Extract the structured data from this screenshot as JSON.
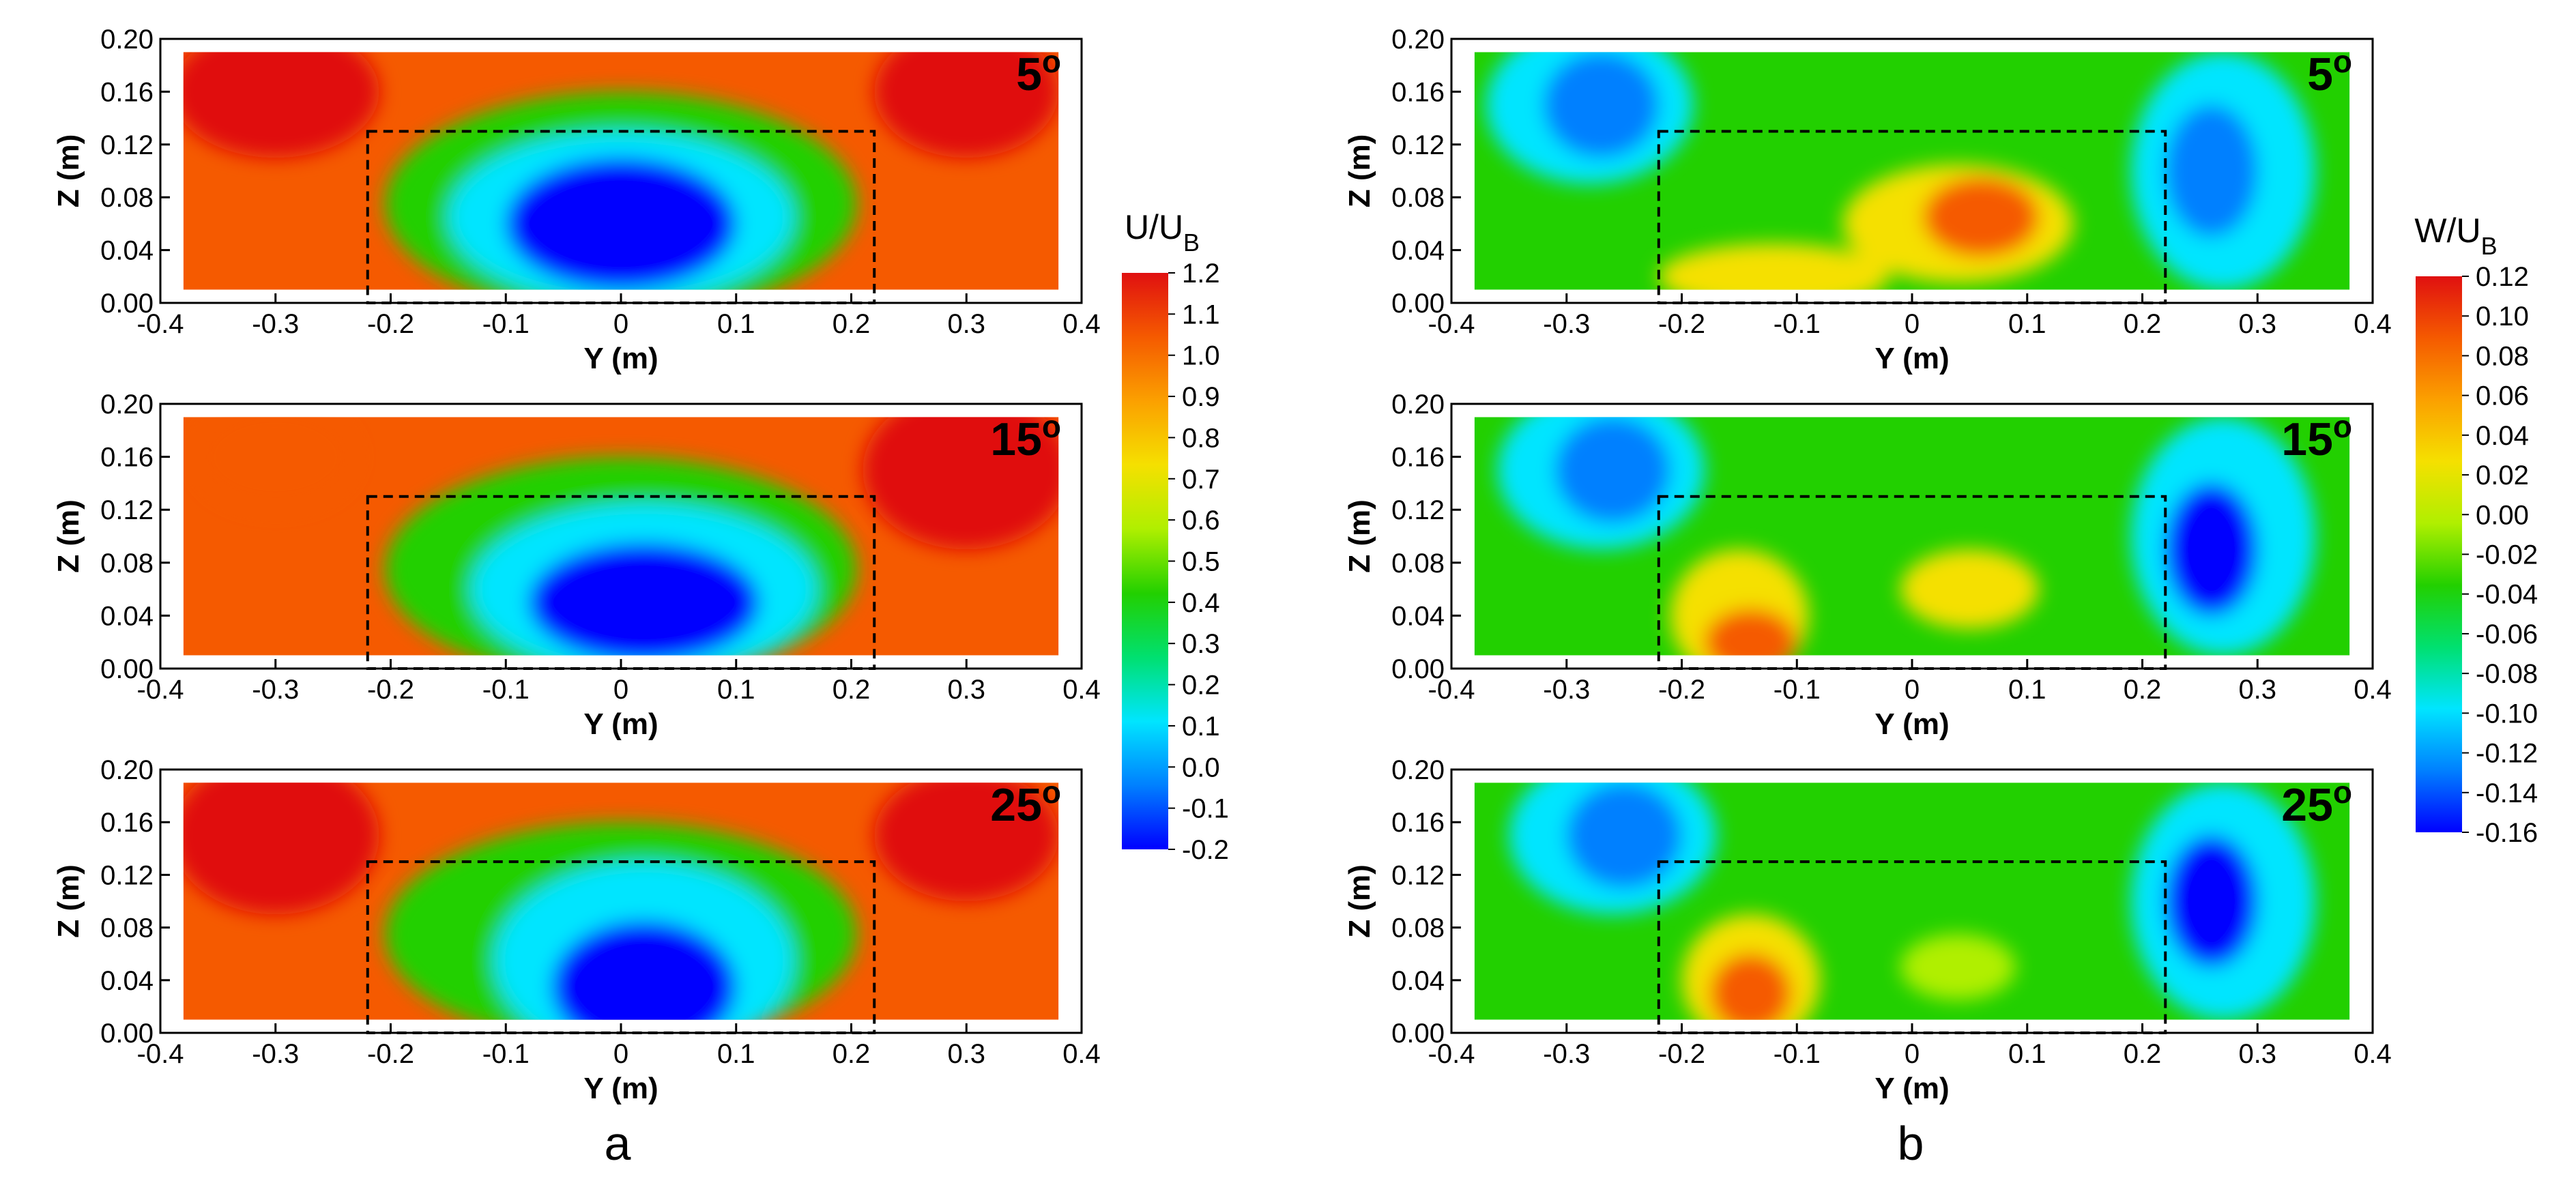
{
  "panel_letters": [
    "a",
    "b"
  ],
  "colorbars": [
    {
      "title_main": "U/U",
      "title_sub": "B",
      "ticks": [
        "1.2",
        "1.1",
        "1.0",
        "0.9",
        "0.8",
        "0.7",
        "0.6",
        "0.5",
        "0.4",
        "0.3",
        "0.2",
        "0.1",
        "0.0",
        "-0.1",
        "-0.2"
      ],
      "range": [
        -0.2,
        1.2
      ]
    },
    {
      "title_main": "W/U",
      "title_sub": "B",
      "ticks": [
        "0.12",
        "0.10",
        "0.08",
        "0.06",
        "0.04",
        "0.02",
        "0.00",
        "-0.02",
        "-0.04",
        "-0.06",
        "-0.08",
        "-0.10",
        "-0.12",
        "-0.14",
        "-0.16"
      ],
      "range": [
        -0.16,
        0.12
      ]
    }
  ],
  "colors": {
    "scale": [
      "#0000ff",
      "#0080ff",
      "#00e5ff",
      "#00e070",
      "#22d000",
      "#b0ef00",
      "#f5e000",
      "#fba000",
      "#f55a00",
      "#e01010"
    ],
    "frame": "#000000",
    "box": "#000000"
  },
  "chart_data": [
    {
      "type": "heatmap",
      "panel": "a",
      "field": "U/UB",
      "angle": "5°",
      "angle_main": "5",
      "angle_sup": "o",
      "xlabel": "Y (m)",
      "ylabel": "Z (m)",
      "xlim": [
        -0.4,
        0.4
      ],
      "ylim": [
        0.0,
        0.2
      ],
      "xticks": [
        "-0.4",
        "-0.3",
        "-0.2",
        "-0.1",
        "0",
        "0.1",
        "0.2",
        "0.3",
        "0.4"
      ],
      "yticks": [
        "0.00",
        "0.04",
        "0.08",
        "0.12",
        "0.16",
        "0.20"
      ],
      "measured_region": {
        "y": [
          -0.38,
          0.38
        ],
        "z": [
          0.01,
          0.19
        ]
      },
      "body_outline": {
        "y": [
          -0.22,
          0.22
        ],
        "z": [
          0.0,
          0.13
        ]
      },
      "features": [
        {
          "label": "wake core",
          "y": 0.0,
          "z": 0.06,
          "value": -0.1
        },
        {
          "label": "freestream",
          "value": 1.05
        }
      ]
    },
    {
      "type": "heatmap",
      "panel": "a",
      "field": "U/UB",
      "angle": "15°",
      "angle_main": "15",
      "angle_sup": "o",
      "xlabel": "Y (m)",
      "ylabel": "Z (m)",
      "xlim": [
        -0.4,
        0.4
      ],
      "ylim": [
        0.0,
        0.2
      ],
      "xticks": [
        "-0.4",
        "-0.3",
        "-0.2",
        "-0.1",
        "0",
        "0.1",
        "0.2",
        "0.3",
        "0.4"
      ],
      "yticks": [
        "0.00",
        "0.04",
        "0.08",
        "0.12",
        "0.16",
        "0.20"
      ],
      "measured_region": {
        "y": [
          -0.38,
          0.38
        ],
        "z": [
          0.01,
          0.19
        ]
      },
      "body_outline": {
        "y": [
          -0.22,
          0.22
        ],
        "z": [
          0.0,
          0.13
        ]
      },
      "features": [
        {
          "label": "wake core",
          "y": 0.02,
          "z": 0.05,
          "value": -0.1
        },
        {
          "label": "freestream",
          "value": 1.05
        }
      ]
    },
    {
      "type": "heatmap",
      "panel": "a",
      "field": "U/UB",
      "angle": "25°",
      "angle_main": "25",
      "angle_sup": "o",
      "xlabel": "Y (m)",
      "ylabel": "Z (m)",
      "xlim": [
        -0.4,
        0.4
      ],
      "ylim": [
        0.0,
        0.2
      ],
      "xticks": [
        "-0.4",
        "-0.3",
        "-0.2",
        "-0.1",
        "0",
        "0.1",
        "0.2",
        "0.3",
        "0.4"
      ],
      "yticks": [
        "0.00",
        "0.04",
        "0.08",
        "0.12",
        "0.16",
        "0.20"
      ],
      "measured_region": {
        "y": [
          -0.38,
          0.38
        ],
        "z": [
          0.01,
          0.19
        ]
      },
      "body_outline": {
        "y": [
          -0.22,
          0.22
        ],
        "z": [
          0.0,
          0.13
        ]
      },
      "features": [
        {
          "label": "wake core",
          "y": 0.02,
          "z": 0.03,
          "value": -0.15
        },
        {
          "label": "freestream",
          "value": 1.05
        }
      ]
    },
    {
      "type": "heatmap",
      "panel": "b",
      "field": "W/UB",
      "angle": "5°",
      "angle_main": "5",
      "angle_sup": "o",
      "xlabel": "Y (m)",
      "ylabel": "Z (m)",
      "xlim": [
        -0.4,
        0.4
      ],
      "ylim": [
        0.0,
        0.2
      ],
      "xticks": [
        "-0.4",
        "-0.3",
        "-0.2",
        "-0.1",
        "0",
        "0.1",
        "0.2",
        "0.3",
        "0.4"
      ],
      "yticks": [
        "0.00",
        "0.04",
        "0.08",
        "0.12",
        "0.16",
        "0.20"
      ],
      "measured_region": {
        "y": [
          -0.38,
          0.38
        ],
        "z": [
          0.01,
          0.19
        ]
      },
      "body_outline": {
        "y": [
          -0.22,
          0.22
        ],
        "z": [
          0.0,
          0.13
        ]
      },
      "features": [
        {
          "label": "upwash",
          "y": 0.06,
          "z": 0.07,
          "value": 0.1
        },
        {
          "label": "downwash left",
          "y": -0.27,
          "z": 0.14,
          "value": -0.12
        },
        {
          "label": "downwash right",
          "y": 0.26,
          "z": 0.1,
          "value": -0.14
        }
      ]
    },
    {
      "type": "heatmap",
      "panel": "b",
      "field": "W/UB",
      "angle": "15°",
      "angle_main": "15",
      "angle_sup": "o",
      "xlabel": "Y (m)",
      "ylabel": "Z (m)",
      "xlim": [
        -0.4,
        0.4
      ],
      "ylim": [
        0.0,
        0.2
      ],
      "xticks": [
        "-0.4",
        "-0.3",
        "-0.2",
        "-0.1",
        "0",
        "0.1",
        "0.2",
        "0.3",
        "0.4"
      ],
      "yticks": [
        "0.00",
        "0.04",
        "0.08",
        "0.12",
        "0.16",
        "0.20"
      ],
      "measured_region": {
        "y": [
          -0.38,
          0.38
        ],
        "z": [
          0.01,
          0.19
        ]
      },
      "body_outline": {
        "y": [
          -0.22,
          0.22
        ],
        "z": [
          0.0,
          0.13
        ]
      },
      "features": [
        {
          "label": "upwash",
          "y": -0.15,
          "z": 0.02,
          "value": 0.09
        },
        {
          "label": "upwash",
          "y": 0.05,
          "z": 0.06,
          "value": 0.07
        },
        {
          "label": "downwash left",
          "y": -0.27,
          "z": 0.15,
          "value": -0.14
        },
        {
          "label": "downwash right",
          "y": 0.26,
          "z": 0.09,
          "value": -0.15
        }
      ]
    },
    {
      "type": "heatmap",
      "panel": "b",
      "field": "W/UB",
      "angle": "25°",
      "angle_main": "25",
      "angle_sup": "o",
      "xlabel": "Y (m)",
      "ylabel": "Z (m)",
      "xlim": [
        -0.4,
        0.4
      ],
      "ylim": [
        0.0,
        0.2
      ],
      "xticks": [
        "-0.4",
        "-0.3",
        "-0.2",
        "-0.1",
        "0",
        "0.1",
        "0.2",
        "0.3",
        "0.4"
      ],
      "yticks": [
        "0.00",
        "0.04",
        "0.08",
        "0.12",
        "0.16",
        "0.20"
      ],
      "measured_region": {
        "y": [
          -0.38,
          0.38
        ],
        "z": [
          0.01,
          0.19
        ]
      },
      "body_outline": {
        "y": [
          -0.22,
          0.22
        ],
        "z": [
          0.0,
          0.13
        ]
      },
      "features": [
        {
          "label": "upwash",
          "y": -0.14,
          "z": 0.04,
          "value": 0.09
        },
        {
          "label": "downwash left",
          "y": -0.25,
          "z": 0.15,
          "value": -0.11
        },
        {
          "label": "downwash right",
          "y": 0.26,
          "z": 0.1,
          "value": -0.15
        }
      ]
    }
  ]
}
